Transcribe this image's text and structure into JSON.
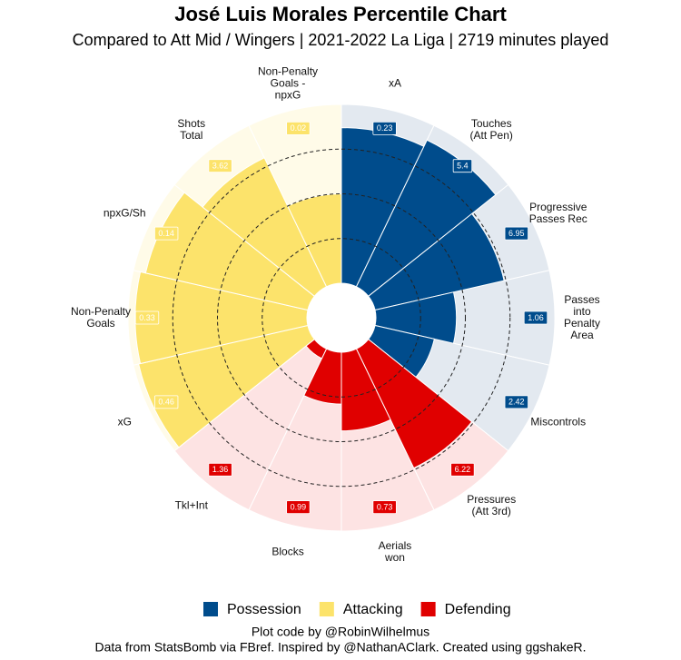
{
  "chart_data": {
    "type": "polar_bar",
    "title": "José Luis Morales Percentile Chart",
    "subtitle": "Compared to Att Mid / Wingers | 2021-2022 La Liga | 2719 minutes played",
    "caption_lines": [
      "Plot code by @RobinWilhelmus",
      "Data from StatsBomb via FBref. Inspired by @NathanAClark. Created using ggshakeR."
    ],
    "rlim": [
      0,
      100
    ],
    "rgrid": [
      25,
      50,
      75
    ],
    "series": [
      {
        "name": "Possession",
        "color": "#004c8c",
        "background": "#e3e9f0",
        "categories": [
          "xA",
          "Touches\n(Att Pen)",
          "Progressive\nPasses Rec",
          "Passes\ninto\nPenalty\nArea",
          "Miscontrols"
        ],
        "values": [
          87,
          91,
          74,
          45,
          34
        ],
        "stat_values": [
          0.23,
          5.4,
          6.95,
          1.06,
          2.42
        ]
      },
      {
        "name": "Attacking",
        "color": "#fce36b",
        "background": "#fffbe8",
        "categories": [
          "xG",
          "Non-Penalty\nGoals",
          "npxG/Sh",
          "Shots\nTotal",
          "Non-Penalty\nGoals -\nnpxG"
        ],
        "values": [
          97,
          96,
          93,
          80,
          50
        ],
        "stat_values": [
          0.46,
          0.33,
          0.14,
          3.62,
          0.02
        ]
      },
      {
        "name": "Defending",
        "color": "#e00000",
        "background": "#fde3e3",
        "categories": [
          "Pressures\n(Att 3rd)",
          "Aerials\nwon",
          "Blocks",
          "Tkl+Int"
        ],
        "values": [
          74,
          44,
          29,
          6
        ],
        "stat_values": [
          6.22,
          0.73,
          0.99,
          1.36
        ]
      }
    ]
  }
}
